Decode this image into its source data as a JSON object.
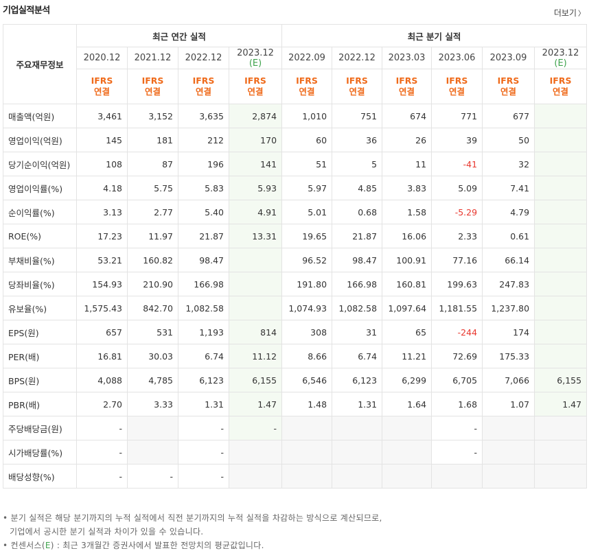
{
  "title": "기업실적분석",
  "more": "더보기",
  "header": {
    "corner": "주요재무정보",
    "annual_label": "최근 연간 실적",
    "quarter_label": "최근 분기 실적",
    "annual_periods": [
      {
        "date": "2020.12",
        "est": ""
      },
      {
        "date": "2021.12",
        "est": ""
      },
      {
        "date": "2022.12",
        "est": ""
      },
      {
        "date": "2023.12",
        "est": "(E)"
      }
    ],
    "quarter_periods": [
      {
        "date": "2022.09",
        "est": ""
      },
      {
        "date": "2022.12",
        "est": ""
      },
      {
        "date": "2023.03",
        "est": ""
      },
      {
        "date": "2023.06",
        "est": ""
      },
      {
        "date": "2023.09",
        "est": ""
      },
      {
        "date": "2023.12",
        "est": "(E)"
      }
    ],
    "basis_line1": "IFRS",
    "basis_line2": "연결"
  },
  "rows": [
    {
      "label": "매출액(억원)",
      "values": [
        "3,461",
        "3,152",
        "3,635",
        "2,874",
        "1,010",
        "751",
        "674",
        "771",
        "677",
        ""
      ]
    },
    {
      "label": "영업이익(억원)",
      "values": [
        "145",
        "181",
        "212",
        "170",
        "60",
        "36",
        "26",
        "39",
        "50",
        ""
      ]
    },
    {
      "label": "당기순이익(억원)",
      "values": [
        "108",
        "87",
        "196",
        "141",
        "51",
        "5",
        "11",
        "-41",
        "32",
        ""
      ]
    },
    {
      "label": "영업이익률(%)",
      "values": [
        "4.18",
        "5.75",
        "5.83",
        "5.93",
        "5.97",
        "4.85",
        "3.83",
        "5.09",
        "7.41",
        ""
      ]
    },
    {
      "label": "순이익률(%)",
      "values": [
        "3.13",
        "2.77",
        "5.40",
        "4.91",
        "5.01",
        "0.68",
        "1.58",
        "-5.29",
        "4.79",
        ""
      ]
    },
    {
      "label": "ROE(%)",
      "values": [
        "17.23",
        "11.97",
        "21.87",
        "13.31",
        "19.65",
        "21.87",
        "16.06",
        "2.33",
        "0.61",
        ""
      ]
    },
    {
      "label": "부채비율(%)",
      "values": [
        "53.21",
        "160.82",
        "98.47",
        "",
        "96.52",
        "98.47",
        "100.91",
        "77.16",
        "66.14",
        ""
      ]
    },
    {
      "label": "당좌비율(%)",
      "values": [
        "154.93",
        "210.90",
        "166.98",
        "",
        "191.80",
        "166.98",
        "160.81",
        "199.63",
        "247.83",
        ""
      ]
    },
    {
      "label": "유보율(%)",
      "values": [
        "1,575.43",
        "842.70",
        "1,082.58",
        "",
        "1,074.93",
        "1,082.58",
        "1,097.64",
        "1,181.55",
        "1,237.80",
        ""
      ]
    },
    {
      "label": "EPS(원)",
      "values": [
        "657",
        "531",
        "1,193",
        "814",
        "308",
        "31",
        "65",
        "-244",
        "174",
        ""
      ]
    },
    {
      "label": "PER(배)",
      "values": [
        "16.81",
        "30.03",
        "6.74",
        "11.12",
        "8.66",
        "6.74",
        "11.21",
        "72.69",
        "175.33",
        ""
      ]
    },
    {
      "label": "BPS(원)",
      "values": [
        "4,088",
        "4,785",
        "6,123",
        "6,155",
        "6,546",
        "6,123",
        "6,299",
        "6,705",
        "7,066",
        "6,155"
      ]
    },
    {
      "label": "PBR(배)",
      "values": [
        "2.70",
        "3.33",
        "1.31",
        "1.47",
        "1.48",
        "1.31",
        "1.64",
        "1.68",
        "1.07",
        "1.47"
      ]
    },
    {
      "label": "주당배당금(원)",
      "values": [
        "-",
        "",
        "-",
        "-",
        "",
        "",
        "",
        "-",
        "",
        ""
      ]
    },
    {
      "label": "시가배당률(%)",
      "values": [
        "-",
        "",
        "-",
        "",
        "",
        "",
        "",
        "-",
        "",
        ""
      ]
    },
    {
      "label": "배당성향(%)",
      "values": [
        "-",
        "-",
        "-",
        "",
        "",
        "",
        "",
        "",
        "",
        ""
      ]
    }
  ],
  "notes": {
    "line1": "분기 실적은 해당 분기까지의 누적 실적에서 직전 분기까지의 누적 실적을 차감하는 방식으로 계산되므로,",
    "line2": "기업에서 공시한 분기 실적과 차이가 있을 수 있습니다.",
    "line3_prefix": "컨센서스(",
    "line3_e": "E",
    "line3_suffix": ") : 최근 3개월간 증권사에서 발표한 전망치의 평균값입니다."
  },
  "colors": {
    "ifrs": "#ef6a1a",
    "negative": "#e8362d",
    "estimate": "#3fa34d",
    "estimate_bg": "#f4faf2",
    "empty_bg": "#f7f7f7"
  }
}
